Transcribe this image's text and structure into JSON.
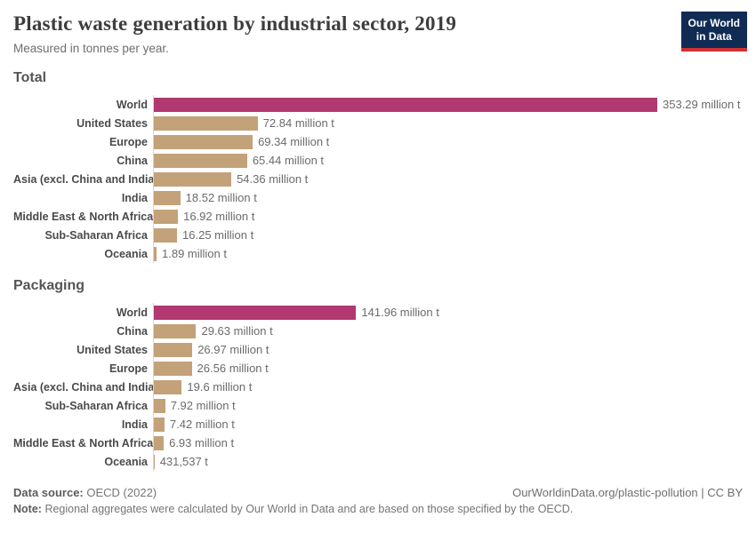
{
  "header": {
    "title": "Plastic waste generation by industrial sector, 2019",
    "subtitle": "Measured in tonnes per year.",
    "logo_line1": "Our World",
    "logo_line2": "in Data"
  },
  "colors": {
    "world_bar": "#b13871",
    "region_bar": "#c3a179",
    "logo_bg": "#102c54",
    "logo_stripe": "#cf3235",
    "axis_line": "#d6d6d6"
  },
  "chart_data": [
    {
      "type": "bar",
      "section_title": "Total",
      "orientation": "horizontal",
      "unit": "million tonnes per year",
      "xlim": [
        0,
        353.29
      ],
      "grid": false,
      "legend": "none",
      "categories": [
        "World",
        "United States",
        "Europe",
        "China",
        "Asia (excl. China and India)",
        "India",
        "Middle East & North Africa",
        "Sub-Saharan Africa",
        "Oceania"
      ],
      "values": [
        353.29,
        72.84,
        69.34,
        65.44,
        54.36,
        18.52,
        16.92,
        16.25,
        1.89
      ],
      "rows": [
        {
          "category": "World",
          "value": 353.29,
          "label": "353.29 million t",
          "highlight": true
        },
        {
          "category": "United States",
          "value": 72.84,
          "label": "72.84 million t",
          "highlight": false
        },
        {
          "category": "Europe",
          "value": 69.34,
          "label": "69.34 million t",
          "highlight": false
        },
        {
          "category": "China",
          "value": 65.44,
          "label": "65.44 million t",
          "highlight": false
        },
        {
          "category": "Asia (excl. China and India)",
          "value": 54.36,
          "label": "54.36 million t",
          "highlight": false
        },
        {
          "category": "India",
          "value": 18.52,
          "label": "18.52 million t",
          "highlight": false
        },
        {
          "category": "Middle East & North Africa",
          "value": 16.92,
          "label": "16.92 million t",
          "highlight": false
        },
        {
          "category": "Sub-Saharan Africa",
          "value": 16.25,
          "label": "16.25 million t",
          "highlight": false
        },
        {
          "category": "Oceania",
          "value": 1.89,
          "label": "1.89 million t",
          "highlight": false
        }
      ]
    },
    {
      "type": "bar",
      "section_title": "Packaging",
      "orientation": "horizontal",
      "unit": "million tonnes per year",
      "xlim": [
        0,
        353.29
      ],
      "grid": false,
      "legend": "none",
      "categories": [
        "World",
        "China",
        "United States",
        "Europe",
        "Asia (excl. China and India)",
        "Sub-Saharan Africa",
        "India",
        "Middle East & North Africa",
        "Oceania"
      ],
      "values": [
        141.96,
        29.63,
        26.97,
        26.56,
        19.6,
        7.92,
        7.42,
        6.93,
        0.431537
      ],
      "rows": [
        {
          "category": "World",
          "value": 141.96,
          "label": "141.96 million t",
          "highlight": true
        },
        {
          "category": "China",
          "value": 29.63,
          "label": "29.63 million t",
          "highlight": false
        },
        {
          "category": "United States",
          "value": 26.97,
          "label": "26.97 million t",
          "highlight": false
        },
        {
          "category": "Europe",
          "value": 26.56,
          "label": "26.56 million t",
          "highlight": false
        },
        {
          "category": "Asia (excl. China and India)",
          "value": 19.6,
          "label": "19.6 million t",
          "highlight": false
        },
        {
          "category": "Sub-Saharan Africa",
          "value": 7.92,
          "label": "7.92 million t",
          "highlight": false
        },
        {
          "category": "India",
          "value": 7.42,
          "label": "7.42 million t",
          "highlight": false
        },
        {
          "category": "Middle East & North Africa",
          "value": 6.93,
          "label": "6.93 million t",
          "highlight": false
        },
        {
          "category": "Oceania",
          "value": 0.431537,
          "label": "431,537 t",
          "highlight": false
        }
      ]
    }
  ],
  "footer": {
    "datasource_label": "Data source:",
    "datasource_value": "OECD (2022)",
    "link": "OurWorldinData.org/plastic-pollution | CC BY",
    "note_label": "Note:",
    "note_text": "Regional aggregates were calculated by Our World in Data and are based on those specified by the OECD."
  }
}
